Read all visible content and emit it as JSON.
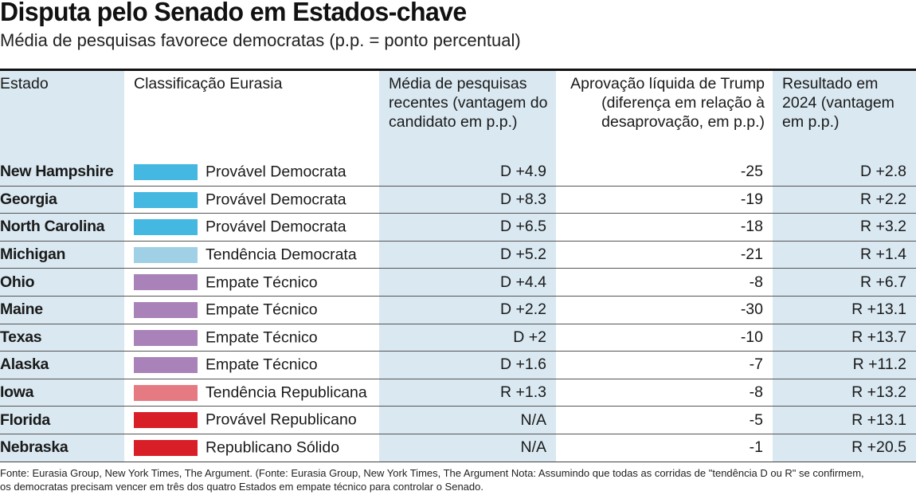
{
  "title": "Disputa pelo Senado em Estados-chave",
  "subtitle": "Média de pesquisas favorece democratas (p.p. = ponto percentual)",
  "colors": {
    "provavel_democrata": "#44b8e0",
    "tendencia_democrata": "#9fd0e6",
    "empate_tecnico": "#a882b8",
    "tendencia_republicana": "#e57a82",
    "provavel_republicano": "#d81f28",
    "republicano_solido": "#d81f28",
    "column_shade": "#d9e8f1"
  },
  "headers": {
    "estado": "Estado",
    "classificacao": "Classificação Eurasia",
    "media": "Média de pesquisas recentes (vantagem do candidato em p.p.)",
    "aprovacao": "Aprovação líquida de Trump (diferença em relação à desaprovação, em p.p.)",
    "resultado": "Resultado em 2024 (vantagem em p.p.)"
  },
  "chart_data": {
    "type": "table",
    "columns": [
      "Estado",
      "Classificação Eurasia",
      "Média de pesquisas recentes (vantagem do candidato em p.p.)",
      "Aprovação líquida de Trump (diferença em relação à desaprovação, em p.p.)",
      "Resultado em 2024 (vantagem em p.p.)"
    ],
    "rows": [
      {
        "estado": "New Hampshire",
        "classificacao": "Provável Democrata",
        "color_key": "provavel_democrata",
        "media": "D +4.9",
        "aprovacao": "-25",
        "resultado": "D +2.8"
      },
      {
        "estado": "Georgia",
        "classificacao": "Provável Democrata",
        "color_key": "provavel_democrata",
        "media": "D +8.3",
        "aprovacao": "-19",
        "resultado": "R +2.2"
      },
      {
        "estado": "North Carolina",
        "classificacao": "Provável Democrata",
        "color_key": "provavel_democrata",
        "media": "D +6.5",
        "aprovacao": "-18",
        "resultado": "R +3.2"
      },
      {
        "estado": "Michigan",
        "classificacao": "Tendência Democrata",
        "color_key": "tendencia_democrata",
        "media": "D +5.2",
        "aprovacao": "-21",
        "resultado": "R +1.4"
      },
      {
        "estado": "Ohio",
        "classificacao": "Empate Técnico",
        "color_key": "empate_tecnico",
        "media": "D +4.4",
        "aprovacao": "-8",
        "resultado": "R +6.7"
      },
      {
        "estado": "Maine",
        "classificacao": "Empate Técnico",
        "color_key": "empate_tecnico",
        "media": "D +2.2",
        "aprovacao": "-30",
        "resultado": "R +13.1"
      },
      {
        "estado": "Texas",
        "classificacao": "Empate Técnico",
        "color_key": "empate_tecnico",
        "media": "D +2",
        "aprovacao": "-10",
        "resultado": "R +13.7"
      },
      {
        "estado": "Alaska",
        "classificacao": "Empate Técnico",
        "color_key": "empate_tecnico",
        "media": "D +1.6",
        "aprovacao": "-7",
        "resultado": "R +11.2"
      },
      {
        "estado": "Iowa",
        "classificacao": "Tendência Republicana",
        "color_key": "tendencia_republicana",
        "media": "R +1.3",
        "aprovacao": "-8",
        "resultado": "R +13.2"
      },
      {
        "estado": "Florida",
        "classificacao": "Provável Republicano",
        "color_key": "provavel_republicano",
        "media": "N/A",
        "aprovacao": "-5",
        "resultado": "R +13.1"
      },
      {
        "estado": "Nebraska",
        "classificacao": "Republicano Sólido",
        "color_key": "republicano_solido",
        "media": "N/A",
        "aprovacao": "-1",
        "resultado": "R +20.5"
      }
    ]
  },
  "source": "Fonte: Eurasia Group, New York Times, The Argument. (Fonte: Eurasia Group, New York Times, The Argument Nota: Assumindo que todas as corridas de \"tendência D ou R\" se confirmem, os democratas precisam vencer em três dos quatro Estados em empate técnico para controlar o Senado."
}
